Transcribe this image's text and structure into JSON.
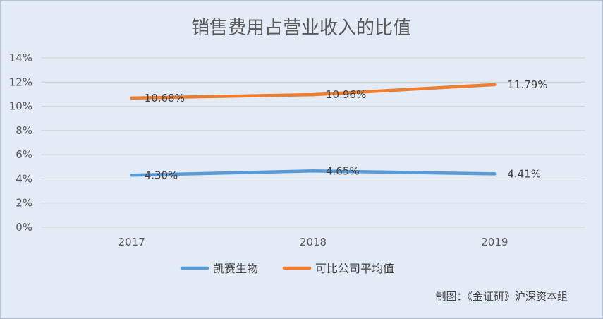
{
  "chart_data": {
    "type": "line",
    "title": "销售费用占营业收入的比值",
    "categories": [
      "2017",
      "2018",
      "2019"
    ],
    "y_ticks": [
      "0%",
      "2%",
      "4%",
      "6%",
      "8%",
      "10%",
      "12%",
      "14%"
    ],
    "ylim": [
      0,
      14
    ],
    "grid": true,
    "legend_position": "bottom",
    "series": [
      {
        "name": "凯赛生物",
        "values": [
          4.3,
          4.65,
          4.41
        ],
        "labels": [
          "4.30%",
          "4.65%",
          "4.41%"
        ],
        "color": "#5b9bd5"
      },
      {
        "name": "可比公司平均值",
        "values": [
          10.68,
          10.96,
          11.79
        ],
        "labels": [
          "10.68%",
          "10.96%",
          "11.79%"
        ],
        "color": "#ed7d31"
      }
    ],
    "source": "制图：《金证研》沪深资本组"
  }
}
